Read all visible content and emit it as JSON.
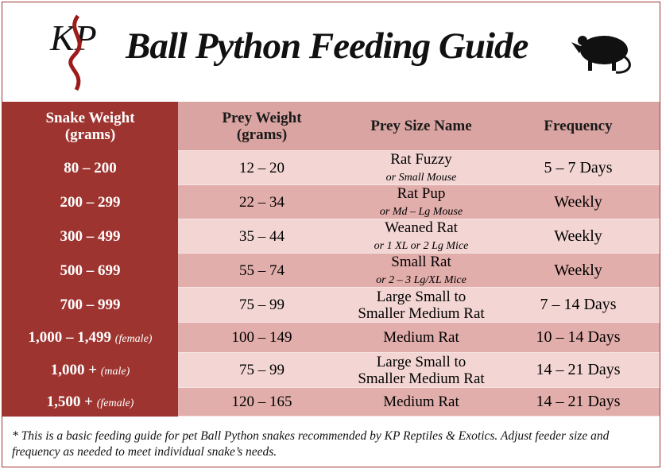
{
  "header": {
    "logo": "KP",
    "title": "Ball Python Feeding Guide"
  },
  "table": {
    "columns": [
      "Snake Weight\n(grams)",
      "Prey Weight\n(grams)",
      "Prey Size Name",
      "Frequency"
    ],
    "rows": [
      [
        {
          "main": "80 – 200"
        },
        "12 – 20",
        {
          "main": "Rat Fuzzy",
          "note": "or Small Mouse"
        },
        "5 – 7 Days"
      ],
      [
        {
          "main": "200 – 299"
        },
        "22 – 34",
        {
          "main": "Rat Pup",
          "note": "or Md – Lg Mouse"
        },
        "Weekly"
      ],
      [
        {
          "main": "300 – 499"
        },
        "35 – 44",
        {
          "main": "Weaned Rat",
          "note": "or 1 XL or 2 Lg Mice"
        },
        "Weekly"
      ],
      [
        {
          "main": "500 – 699"
        },
        "55 – 74",
        {
          "main": "Small Rat",
          "note": "or 2 – 3 Lg/XL Mice"
        },
        "Weekly"
      ],
      [
        {
          "main": "700 – 999"
        },
        "75 – 99",
        {
          "main": "Large Small to\nSmaller Medium Rat"
        },
        "7 – 14 Days"
      ],
      [
        {
          "main": "1,000 – 1,499",
          "note": "(female)"
        },
        "100 – 149",
        {
          "main": "Medium Rat"
        },
        "10 – 14 Days"
      ],
      [
        {
          "main": "1,000 +",
          "note": "(male)"
        },
        "75 – 99",
        {
          "main": "Large Small to\nSmaller Medium Rat"
        },
        "14 – 21 Days"
      ],
      [
        {
          "main": "1,500 +",
          "note": "(female)"
        },
        "120 – 165",
        {
          "main": "Medium Rat"
        },
        "14 – 21 Days"
      ]
    ]
  },
  "footnote": "* This is a basic feeding guide for pet Ball Python snakes recommended by KP Reptiles & Exotics. Adjust feeder size and frequency as needed to meet individual snake’s needs."
}
